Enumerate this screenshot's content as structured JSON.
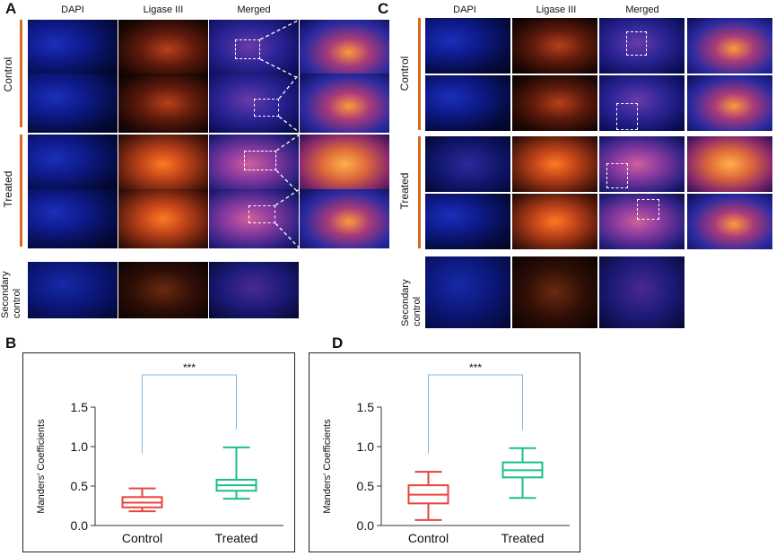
{
  "panels": {
    "A": {
      "letter": "A"
    },
    "B": {
      "letter": "B"
    },
    "C": {
      "letter": "C"
    },
    "D": {
      "letter": "D"
    }
  },
  "columns": {
    "dapi": "DAPI",
    "ligase": "Ligase III",
    "merged": "Merged"
  },
  "rows": {
    "control": "Control",
    "treated": "Treated",
    "secondary_line1": "Secondary",
    "secondary_line2": "control"
  },
  "chart_data": [
    {
      "type": "box",
      "panel": "B",
      "ylabel": "Manders' Coefficients",
      "yticks": [
        "0.0",
        "0.5",
        "1.0",
        "1.5"
      ],
      "ylim": [
        0,
        1.5
      ],
      "categories": [
        "Control",
        "Treated"
      ],
      "boxes": [
        {
          "name": "Control",
          "color": "#e8433d",
          "min": 0.18,
          "q1": 0.23,
          "median": 0.29,
          "q3": 0.36,
          "max": 0.47
        },
        {
          "name": "Treated",
          "color": "#1bbf8a",
          "min": 0.34,
          "q1": 0.44,
          "median": 0.51,
          "q3": 0.58,
          "max": 0.99
        }
      ],
      "significance": "***"
    },
    {
      "type": "box",
      "panel": "D",
      "ylabel": "Manders' Coefficients",
      "yticks": [
        "0.0",
        "0.5",
        "1.0",
        "1.5"
      ],
      "ylim": [
        0,
        1.5
      ],
      "categories": [
        "Control",
        "Treated"
      ],
      "boxes": [
        {
          "name": "Control",
          "color": "#e8433d",
          "min": 0.07,
          "q1": 0.28,
          "median": 0.39,
          "q3": 0.51,
          "max": 0.68
        },
        {
          "name": "Treated",
          "color": "#1bbf8a",
          "min": 0.35,
          "q1": 0.61,
          "median": 0.7,
          "q3": 0.8,
          "max": 0.98
        }
      ],
      "significance": "***"
    }
  ]
}
